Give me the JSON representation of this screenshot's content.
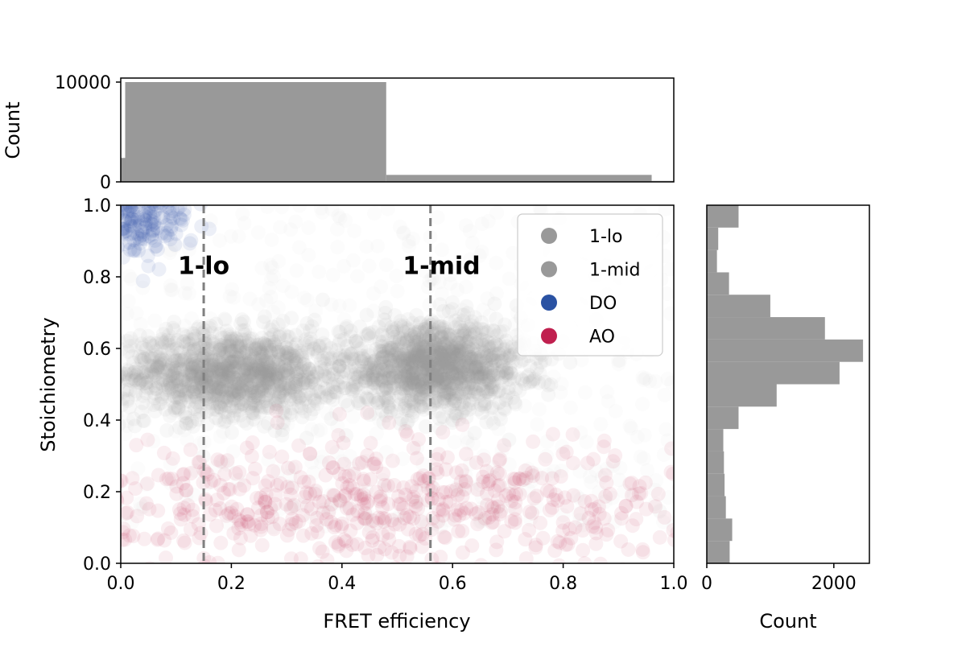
{
  "chart_data": {
    "type": "scatter",
    "xlabel": "FRET efficiency",
    "ylabel": "Stoichiometry",
    "xlim": [
      0.0,
      1.0
    ],
    "ylim": [
      0.0,
      1.0
    ],
    "x_ticks": [
      "0.0",
      "0.2",
      "0.4",
      "0.6",
      "0.8",
      "1.0"
    ],
    "y_ticks": [
      "0.0",
      "0.2",
      "0.4",
      "0.6",
      "0.8",
      "1.0"
    ],
    "legend_position": "top-right",
    "series": [
      {
        "name": "1-lo",
        "color": "#999999",
        "center": [
          0.2,
          0.53
        ],
        "spread": [
          0.1,
          0.06
        ]
      },
      {
        "name": "1-mid",
        "color": "#999999",
        "center": [
          0.57,
          0.55
        ],
        "spread": [
          0.08,
          0.06
        ]
      },
      {
        "name": "DO",
        "color": "#2a52a3",
        "center": [
          0.03,
          0.96
        ],
        "spread": [
          0.05,
          0.05
        ]
      },
      {
        "name": "AO",
        "color": "#c0204f",
        "center": [
          0.5,
          0.15
        ],
        "spread": [
          0.35,
          0.1
        ]
      }
    ],
    "annotations": [
      {
        "label": "1-lo",
        "x": 0.15,
        "text_x": 0.15,
        "text_y": 0.83
      },
      {
        "label": "1-mid",
        "x": 0.56,
        "text_x": 0.58,
        "text_y": 0.83
      }
    ],
    "top_histogram": {
      "ylabel": "Count",
      "y_ticks": [
        "0",
        "10000"
      ],
      "ylim": [
        0,
        10000
      ],
      "bars": [
        {
          "x0": 0.0,
          "x1": 0.008,
          "count": 2400
        },
        {
          "x0": 0.008,
          "x1": 0.48,
          "count": 10000
        },
        {
          "x0": 0.48,
          "x1": 0.96,
          "count": 700
        },
        {
          "x0": 0.96,
          "x1": 1.0,
          "count": 100
        }
      ]
    },
    "right_histogram": {
      "xlabel": "Count",
      "x_ticks": [
        "0",
        "2000"
      ],
      "xlim": [
        0,
        2560
      ],
      "bars": [
        {
          "y0": 0.0,
          "y1": 0.0625,
          "count": 360
        },
        {
          "y0": 0.0625,
          "y1": 0.125,
          "count": 400
        },
        {
          "y0": 0.125,
          "y1": 0.1875,
          "count": 300
        },
        {
          "y0": 0.1875,
          "y1": 0.25,
          "count": 280
        },
        {
          "y0": 0.25,
          "y1": 0.3125,
          "count": 270
        },
        {
          "y0": 0.3125,
          "y1": 0.375,
          "count": 260
        },
        {
          "y0": 0.375,
          "y1": 0.4375,
          "count": 500
        },
        {
          "y0": 0.4375,
          "y1": 0.5,
          "count": 1100
        },
        {
          "y0": 0.5,
          "y1": 0.5625,
          "count": 2090
        },
        {
          "y0": 0.5625,
          "y1": 0.625,
          "count": 2460
        },
        {
          "y0": 0.625,
          "y1": 0.6875,
          "count": 1860
        },
        {
          "y0": 0.6875,
          "y1": 0.75,
          "count": 1000
        },
        {
          "y0": 0.75,
          "y1": 0.8125,
          "count": 350
        },
        {
          "y0": 0.8125,
          "y1": 0.875,
          "count": 160
        },
        {
          "y0": 0.875,
          "y1": 0.9375,
          "count": 180
        },
        {
          "y0": 0.9375,
          "y1": 1.0,
          "count": 500
        }
      ]
    }
  }
}
